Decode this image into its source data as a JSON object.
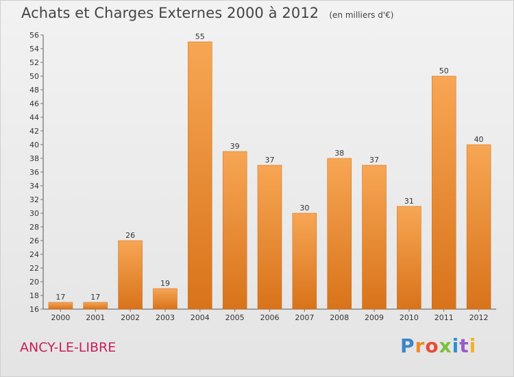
{
  "header": {
    "title": "Achats et Charges Externes 2000 à 2012",
    "subtitle": "(en milliers d'€)"
  },
  "footer": {
    "city": "ANCY-LE-LIBRE",
    "logo_letters": [
      "P",
      "r",
      "o",
      "x",
      "i",
      "t",
      "i"
    ]
  },
  "colors": {
    "bar_top": "#f7a654",
    "bar_bottom": "#d8731a",
    "axis": "#555555",
    "grid_tick": "#777777",
    "city": "#c81d5a"
  },
  "chart_data": {
    "type": "bar",
    "title": "Achats et Charges Externes 2000 à 2012",
    "subtitle": "(en milliers d'€)",
    "xlabel": "",
    "ylabel": "",
    "categories": [
      "2000",
      "2001",
      "2002",
      "2003",
      "2004",
      "2005",
      "2006",
      "2007",
      "2008",
      "2009",
      "2010",
      "2011",
      "2012"
    ],
    "values": [
      17,
      17,
      26,
      19,
      55,
      39,
      37,
      30,
      38,
      37,
      31,
      50,
      40
    ],
    "ylim": [
      16,
      56
    ],
    "yticks": [
      16,
      18,
      20,
      22,
      24,
      26,
      28,
      30,
      32,
      34,
      36,
      38,
      40,
      42,
      44,
      46,
      48,
      50,
      52,
      54,
      56
    ],
    "grid": false,
    "legend": "none"
  }
}
